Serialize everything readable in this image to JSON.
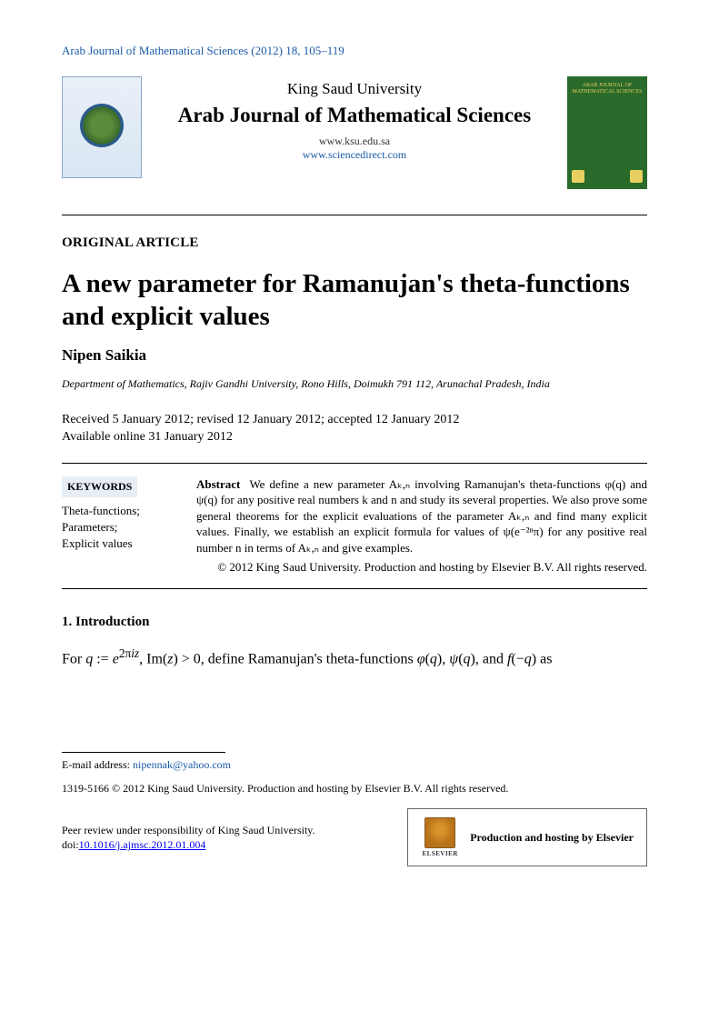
{
  "header": {
    "citation": "Arab Journal of Mathematical Sciences (2012) 18, 105–119"
  },
  "banner": {
    "university": "King Saud University",
    "journal": "Arab Journal of Mathematical Sciences",
    "url1": "www.ksu.edu.sa",
    "url2": "www.sciencedirect.com",
    "cover_title": "ARAB JOURNAL OF MATHEMATICAL SCIENCES"
  },
  "article": {
    "type": "ORIGINAL ARTICLE",
    "title": "A new parameter for Ramanujan's theta-functions and explicit values",
    "author": "Nipen Saikia",
    "affiliation": "Department of Mathematics, Rajiv Gandhi University, Rono Hills, Doimukh 791 112, Arunachal Pradesh, India",
    "received": "Received 5 January 2012; revised 12 January 2012; accepted 12 January 2012",
    "online": "Available online 31 January 2012"
  },
  "keywords": {
    "heading": "KEYWORDS",
    "list": "Theta-functions;\nParameters;\nExplicit values"
  },
  "abstract": {
    "label": "Abstract",
    "text": "We define a new parameter Aₖ,ₙ involving Ramanujan's theta-functions φ(q) and ψ(q) for any positive real numbers k and n and study its several properties. We also prove some general theorems for the explicit evaluations of the parameter Aₖ,ₙ and find many explicit values. Finally, we establish an explicit formula for values of ψ(e⁻²ⁿπ) for any positive real number n in terms of Aₖ,ₙ and give examples.",
    "copyright": "© 2012 King Saud University. Production and hosting by Elsevier B.V. All rights reserved."
  },
  "section1": {
    "heading": "1. Introduction",
    "body": "For q := e²πⁱᶻ, Im(z) > 0, define Ramanujan's theta-functions φ(q), ψ(q), and f(−q) as"
  },
  "footer": {
    "email_label": "E-mail address:",
    "email": "nipennak@yahoo.com",
    "issn": "1319-5166 © 2012 King Saud University. Production and hosting by Elsevier B.V. All rights reserved.",
    "peer": "Peer review under responsibility of King Saud University.",
    "doi_label": "doi:",
    "doi": "10.1016/j.ajmsc.2012.01.004",
    "hosting": "Production and hosting by Elsevier",
    "elsevier": "ELSEVIER"
  },
  "colors": {
    "link": "#1a5aa8",
    "kw_bg": "#e8eef5",
    "cover_bg": "#2a6a2a",
    "cover_accent": "#e8d060"
  }
}
